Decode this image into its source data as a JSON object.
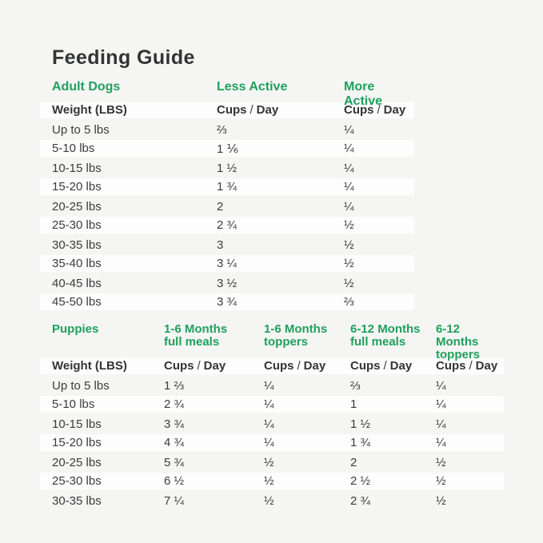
{
  "page": {
    "title": "Feeding Guide"
  },
  "colors": {
    "background": "#f5f5f4",
    "row_white": "#fdfdfd",
    "green": "#21a05c",
    "text_dark": "#333434",
    "text_body": "#3b3c3c"
  },
  "units": {
    "cups": "Cups",
    "sep": "/",
    "day": "Day"
  },
  "adult": {
    "section_label": "Adult Dogs",
    "columns": [
      "Less Active",
      "More Active"
    ],
    "weight_header": "Weight (LBS)",
    "rows": [
      {
        "weight": "Up to 5 lbs",
        "less_active": "⅔",
        "more_active": "¼"
      },
      {
        "weight": "5-10 lbs",
        "less_active": "1 ⅙",
        "more_active": "¼"
      },
      {
        "weight": "10-15 lbs",
        "less_active": "1 ½",
        "more_active": "¼"
      },
      {
        "weight": "15-20 lbs",
        "less_active": "1 ¾",
        "more_active": "¼"
      },
      {
        "weight": "20-25 lbs",
        "less_active": "2",
        "more_active": "¼"
      },
      {
        "weight": "25-30 lbs",
        "less_active": "2 ¾",
        "more_active": "½"
      },
      {
        "weight": "30-35 lbs",
        "less_active": "3",
        "more_active": "½"
      },
      {
        "weight": "35-40 lbs",
        "less_active": "3 ¼",
        "more_active": "½"
      },
      {
        "weight": "40-45 lbs",
        "less_active": "3 ½",
        "more_active": "½"
      },
      {
        "weight": "45-50 lbs",
        "less_active": "3 ¾",
        "more_active": "⅔"
      }
    ]
  },
  "puppies": {
    "section_label": "Puppies",
    "columns": [
      {
        "line1": "1-6 Months",
        "line2": "full meals"
      },
      {
        "line1": "1-6 Months",
        "line2": "toppers"
      },
      {
        "line1": "6-12 Months",
        "line2": "full meals"
      },
      {
        "line1": "6-12 Months",
        "line2": "toppers"
      }
    ],
    "weight_header": "Weight (LBS)",
    "rows": [
      {
        "weight": "Up to 5 lbs",
        "c1": "1 ⅔",
        "c2": "¼",
        "c3": "⅔",
        "c4": "¼"
      },
      {
        "weight": "5-10 lbs",
        "c1": "2 ¾",
        "c2": "¼",
        "c3": "1",
        "c4": "¼"
      },
      {
        "weight": "10-15 lbs",
        "c1": "3 ¾",
        "c2": "¼",
        "c3": "1 ½",
        "c4": "¼"
      },
      {
        "weight": "15-20 lbs",
        "c1": "4 ¾",
        "c2": "¼",
        "c3": "1 ¾",
        "c4": "¼"
      },
      {
        "weight": "20-25 lbs",
        "c1": "5 ¾",
        "c2": "½",
        "c3": "2",
        "c4": "½"
      },
      {
        "weight": "25-30 lbs",
        "c1": "6 ½",
        "c2": "½",
        "c3": "2 ½",
        "c4": "½"
      },
      {
        "weight": "30-35 lbs",
        "c1": "7 ¼",
        "c2": "½",
        "c3": "2 ¾",
        "c4": "½"
      }
    ]
  }
}
